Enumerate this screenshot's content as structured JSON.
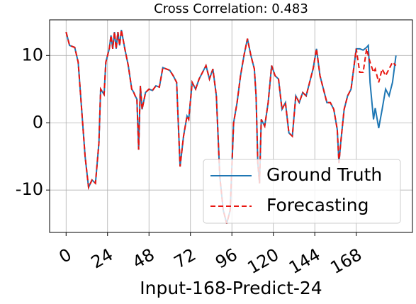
{
  "chart_data": {
    "type": "line",
    "title": "Cross Correlation: 0.483",
    "xlabel": "Input-168-Predict-24",
    "x": [
      0,
      2,
      5,
      7,
      9,
      11,
      13,
      15,
      17,
      19,
      20,
      22,
      23,
      25,
      26,
      27,
      28,
      29,
      30,
      31,
      32,
      34,
      36,
      38,
      39,
      40,
      41,
      42,
      43,
      44,
      46,
      48,
      50,
      52,
      54,
      56,
      58,
      60,
      62,
      64,
      66,
      68,
      70,
      71,
      73,
      75,
      77,
      79,
      81,
      83,
      85,
      87,
      89,
      91,
      93,
      95,
      97,
      99,
      101,
      103,
      105,
      107,
      109,
      110,
      111,
      112,
      113,
      115,
      117,
      119,
      121,
      123,
      125,
      127,
      129,
      131,
      133,
      135,
      137,
      139,
      141,
      143,
      145,
      147,
      149,
      151,
      153,
      155,
      156,
      157,
      158,
      159,
      161,
      163,
      165,
      167,
      168,
      170,
      172,
      174,
      175,
      176,
      178,
      179,
      181,
      183,
      185,
      187,
      189,
      191
    ],
    "series": [
      {
        "name": "Ground Truth",
        "color": "#1f77b4",
        "dash": false,
        "values": [
          13.5,
          11.5,
          11.2,
          9,
          2,
          -5,
          -9.6,
          -8.5,
          -9,
          -3,
          5,
          4.2,
          9,
          11,
          13,
          11,
          13.5,
          11,
          13.5,
          11.5,
          13.8,
          11,
          8.5,
          5,
          4.6,
          4,
          3.5,
          -4,
          5.5,
          2,
          4.5,
          5,
          4.8,
          5.5,
          5.3,
          8.2,
          8,
          7.8,
          7,
          6,
          -6.5,
          -2,
          1,
          0.5,
          6,
          5,
          6.5,
          7.5,
          8.5,
          6.5,
          8,
          4,
          -8,
          -13,
          -15,
          -13,
          0,
          3,
          7,
          10,
          12.5,
          10,
          8,
          4,
          -6,
          -9,
          0.5,
          -0.5,
          3,
          8.5,
          7,
          6.5,
          2,
          3,
          -1.5,
          -2,
          4,
          3,
          4.5,
          4,
          6,
          8,
          11,
          7,
          5,
          3,
          3,
          2,
          0.5,
          -1,
          -6,
          -3,
          2,
          4,
          5,
          9,
          11,
          11,
          10.8,
          11.2,
          11.5,
          6,
          0.5,
          2.2,
          -0.8,
          2,
          5,
          4,
          6,
          10
        ]
      },
      {
        "name": "Forecasting",
        "color": "#e8150f",
        "dash": true,
        "values": [
          13.5,
          11.5,
          11.2,
          9,
          2,
          -5,
          -9.6,
          -8.5,
          -9,
          -3,
          5,
          4.2,
          9,
          11,
          13,
          11,
          13.5,
          11,
          13.5,
          11.5,
          13.8,
          11,
          8.5,
          5,
          4.6,
          4,
          3.5,
          -4,
          5.5,
          2,
          4.5,
          5,
          4.8,
          5.5,
          5.3,
          8.2,
          8,
          7.8,
          7,
          6,
          -6.5,
          -2,
          1,
          0.5,
          6,
          5,
          6.5,
          7.5,
          8.5,
          6.5,
          8,
          4,
          -8,
          -13,
          -15,
          -13,
          0,
          3,
          7,
          10,
          12.5,
          10,
          8,
          4,
          -6,
          -9,
          0.5,
          -0.5,
          3,
          8.5,
          7,
          6.5,
          2,
          3,
          -1.5,
          -2,
          4,
          3,
          4.5,
          4,
          6,
          8,
          11,
          7,
          5,
          3,
          3,
          2,
          0.5,
          -1,
          -6,
          -3,
          2,
          4,
          5,
          9,
          11,
          7.5,
          7.5,
          11,
          10,
          9,
          7.5,
          8,
          6,
          8,
          7,
          8,
          9,
          8.5
        ]
      }
    ],
    "xlim": [
      -9.55,
      200.55
    ],
    "ylim": [
      -16.3,
      15.3
    ],
    "xticks": [
      0,
      24,
      48,
      72,
      96,
      120,
      144,
      168
    ],
    "yticks": [
      -10,
      0,
      10
    ],
    "grid": true,
    "legend": "lower right"
  }
}
